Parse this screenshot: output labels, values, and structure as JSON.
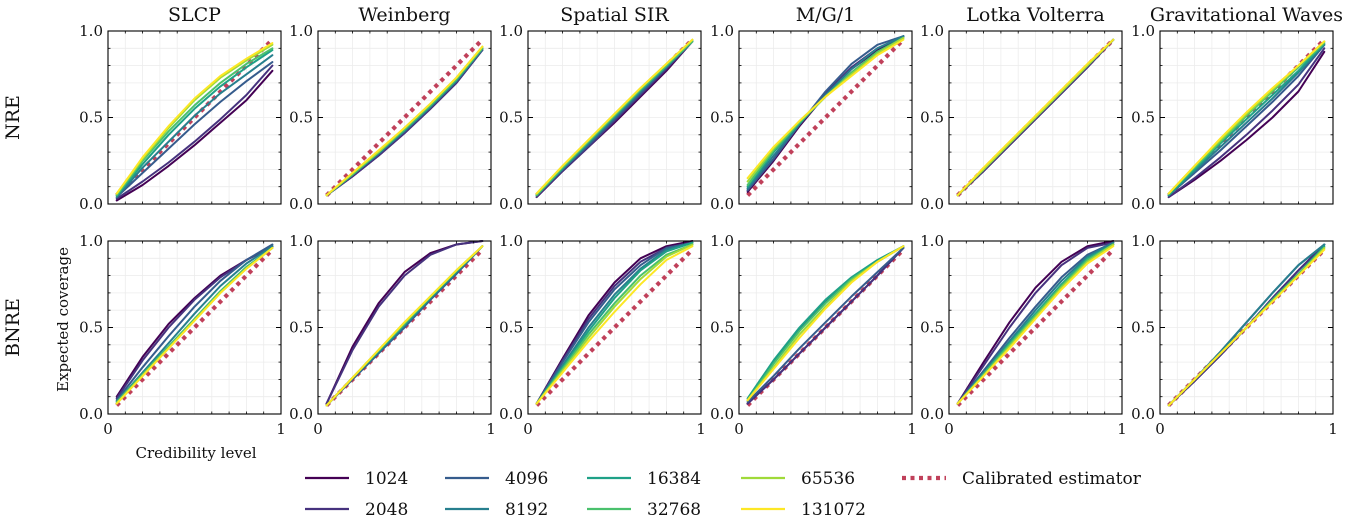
{
  "chart_data": {
    "type": "line",
    "columns": [
      "SLCP",
      "Weinberg",
      "Spatial SIR",
      "M/G/1",
      "Lotka Volterra",
      "Gravitational Waves"
    ],
    "rows": [
      "NRE",
      "BNRE"
    ],
    "xlabel": "Credibility level",
    "ylabel": "Expected coverage",
    "xlim": [
      0,
      1
    ],
    "ylim": [
      0,
      1
    ],
    "xticks": [
      "0",
      "1"
    ],
    "yticks": [
      "0.0",
      "0.5",
      "1.0"
    ],
    "grid": true,
    "budgets": [
      "1024",
      "2048",
      "4096",
      "8192",
      "16384",
      "32768",
      "65536",
      "131072"
    ],
    "series_colors": [
      "#440154",
      "#46327e",
      "#365c8d",
      "#277f8e",
      "#1fa187",
      "#4ac16d",
      "#a0da39",
      "#fde725"
    ],
    "calibrated": {
      "name": "Calibrated estimator",
      "color": "#c0405a",
      "x": [
        0.05,
        0.95
      ],
      "y": [
        0.05,
        0.95
      ]
    },
    "x": [
      0.05,
      0.2,
      0.35,
      0.5,
      0.65,
      0.8,
      0.95
    ],
    "panels": [
      {
        "row": "NRE",
        "col": "SLCP",
        "series": [
          [
            0.02,
            0.11,
            0.22,
            0.34,
            0.47,
            0.6,
            0.77
          ],
          [
            0.03,
            0.13,
            0.24,
            0.36,
            0.49,
            0.63,
            0.8
          ],
          [
            0.04,
            0.18,
            0.32,
            0.46,
            0.59,
            0.71,
            0.82
          ],
          [
            0.04,
            0.21,
            0.36,
            0.51,
            0.64,
            0.75,
            0.86
          ],
          [
            0.05,
            0.23,
            0.4,
            0.55,
            0.68,
            0.79,
            0.89
          ],
          [
            0.05,
            0.25,
            0.42,
            0.57,
            0.7,
            0.81,
            0.9
          ],
          [
            0.06,
            0.26,
            0.44,
            0.6,
            0.73,
            0.83,
            0.92
          ],
          [
            0.06,
            0.27,
            0.45,
            0.61,
            0.74,
            0.84,
            0.93
          ]
        ]
      },
      {
        "row": "NRE",
        "col": "Weinberg",
        "series": [
          [
            0.05,
            0.16,
            0.28,
            0.41,
            0.55,
            0.7,
            0.89
          ],
          [
            0.05,
            0.16,
            0.28,
            0.41,
            0.55,
            0.7,
            0.89
          ],
          [
            0.05,
            0.17,
            0.29,
            0.42,
            0.56,
            0.71,
            0.89
          ],
          [
            0.05,
            0.17,
            0.29,
            0.42,
            0.56,
            0.71,
            0.9
          ],
          [
            0.05,
            0.17,
            0.3,
            0.43,
            0.57,
            0.72,
            0.9
          ],
          [
            0.05,
            0.17,
            0.3,
            0.43,
            0.57,
            0.72,
            0.9
          ],
          [
            0.05,
            0.18,
            0.3,
            0.44,
            0.58,
            0.73,
            0.91
          ],
          [
            0.05,
            0.18,
            0.31,
            0.44,
            0.58,
            0.73,
            0.91
          ]
        ]
      },
      {
        "row": "NRE",
        "col": "Spatial SIR",
        "series": [
          [
            0.04,
            0.19,
            0.33,
            0.47,
            0.62,
            0.77,
            0.94
          ],
          [
            0.04,
            0.19,
            0.33,
            0.48,
            0.63,
            0.78,
            0.94
          ],
          [
            0.05,
            0.2,
            0.34,
            0.49,
            0.64,
            0.79,
            0.94
          ],
          [
            0.05,
            0.2,
            0.35,
            0.5,
            0.65,
            0.79,
            0.94
          ],
          [
            0.05,
            0.21,
            0.36,
            0.51,
            0.66,
            0.8,
            0.94
          ],
          [
            0.05,
            0.21,
            0.36,
            0.51,
            0.66,
            0.8,
            0.94
          ],
          [
            0.06,
            0.22,
            0.37,
            0.52,
            0.67,
            0.81,
            0.95
          ],
          [
            0.06,
            0.22,
            0.37,
            0.52,
            0.67,
            0.81,
            0.95
          ]
        ]
      },
      {
        "row": "NRE",
        "col": "M/G/1",
        "series": [
          [
            0.07,
            0.25,
            0.45,
            0.63,
            0.78,
            0.89,
            0.97
          ],
          [
            0.08,
            0.26,
            0.46,
            0.64,
            0.79,
            0.9,
            0.97
          ],
          [
            0.08,
            0.26,
            0.46,
            0.65,
            0.81,
            0.92,
            0.97
          ],
          [
            0.09,
            0.28,
            0.46,
            0.63,
            0.78,
            0.9,
            0.97
          ],
          [
            0.1,
            0.3,
            0.47,
            0.62,
            0.76,
            0.88,
            0.96
          ],
          [
            0.11,
            0.31,
            0.47,
            0.62,
            0.76,
            0.88,
            0.96
          ],
          [
            0.13,
            0.32,
            0.48,
            0.62,
            0.75,
            0.87,
            0.96
          ],
          [
            0.15,
            0.33,
            0.48,
            0.62,
            0.74,
            0.86,
            0.95
          ]
        ]
      },
      {
        "row": "NRE",
        "col": "Lotka Volterra",
        "series": [
          [
            0.05,
            0.19,
            0.34,
            0.49,
            0.64,
            0.79,
            0.95
          ],
          [
            0.05,
            0.19,
            0.34,
            0.49,
            0.64,
            0.79,
            0.95
          ],
          [
            0.05,
            0.2,
            0.35,
            0.5,
            0.65,
            0.8,
            0.95
          ],
          [
            0.05,
            0.2,
            0.35,
            0.5,
            0.65,
            0.8,
            0.95
          ],
          [
            0.05,
            0.2,
            0.35,
            0.5,
            0.65,
            0.8,
            0.95
          ],
          [
            0.05,
            0.2,
            0.35,
            0.5,
            0.65,
            0.8,
            0.95
          ],
          [
            0.05,
            0.2,
            0.35,
            0.5,
            0.65,
            0.8,
            0.95
          ],
          [
            0.05,
            0.21,
            0.36,
            0.51,
            0.66,
            0.81,
            0.95
          ]
        ]
      },
      {
        "row": "NRE",
        "col": "Gravitational Waves",
        "series": [
          [
            0.04,
            0.14,
            0.25,
            0.37,
            0.5,
            0.65,
            0.88
          ],
          [
            0.04,
            0.15,
            0.27,
            0.4,
            0.54,
            0.69,
            0.9
          ],
          [
            0.05,
            0.18,
            0.31,
            0.45,
            0.59,
            0.74,
            0.92
          ],
          [
            0.05,
            0.19,
            0.33,
            0.47,
            0.61,
            0.76,
            0.92
          ],
          [
            0.05,
            0.2,
            0.35,
            0.49,
            0.63,
            0.77,
            0.93
          ],
          [
            0.06,
            0.21,
            0.36,
            0.51,
            0.65,
            0.79,
            0.93
          ],
          [
            0.06,
            0.22,
            0.37,
            0.52,
            0.66,
            0.8,
            0.94
          ],
          [
            0.06,
            0.22,
            0.38,
            0.53,
            0.67,
            0.8,
            0.94
          ]
        ]
      },
      {
        "row": "BNRE",
        "col": "SLCP",
        "series": [
          [
            0.1,
            0.33,
            0.52,
            0.67,
            0.8,
            0.89,
            0.97
          ],
          [
            0.09,
            0.31,
            0.5,
            0.66,
            0.79,
            0.89,
            0.97
          ],
          [
            0.08,
            0.27,
            0.45,
            0.62,
            0.77,
            0.89,
            0.98
          ],
          [
            0.07,
            0.24,
            0.41,
            0.58,
            0.74,
            0.87,
            0.97
          ],
          [
            0.07,
            0.23,
            0.39,
            0.55,
            0.71,
            0.85,
            0.96
          ],
          [
            0.07,
            0.23,
            0.39,
            0.55,
            0.71,
            0.85,
            0.96
          ],
          [
            0.06,
            0.22,
            0.38,
            0.54,
            0.7,
            0.84,
            0.96
          ],
          [
            0.06,
            0.22,
            0.38,
            0.54,
            0.7,
            0.84,
            0.96
          ]
        ]
      },
      {
        "row": "BNRE",
        "col": "Weinberg",
        "series": [
          [
            0.06,
            0.39,
            0.64,
            0.82,
            0.93,
            0.98,
            1.0
          ],
          [
            0.06,
            0.37,
            0.62,
            0.8,
            0.92,
            0.98,
            1.0
          ],
          [
            0.05,
            0.2,
            0.35,
            0.5,
            0.66,
            0.81,
            0.97
          ],
          [
            0.05,
            0.21,
            0.36,
            0.51,
            0.67,
            0.82,
            0.97
          ],
          [
            0.05,
            0.21,
            0.36,
            0.52,
            0.67,
            0.82,
            0.97
          ],
          [
            0.05,
            0.21,
            0.37,
            0.52,
            0.68,
            0.83,
            0.97
          ],
          [
            0.05,
            0.21,
            0.37,
            0.53,
            0.68,
            0.83,
            0.97
          ],
          [
            0.05,
            0.21,
            0.37,
            0.53,
            0.68,
            0.83,
            0.97
          ]
        ]
      },
      {
        "row": "BNRE",
        "col": "Spatial SIR",
        "series": [
          [
            0.06,
            0.32,
            0.57,
            0.76,
            0.9,
            0.97,
            1.0
          ],
          [
            0.06,
            0.31,
            0.55,
            0.74,
            0.88,
            0.96,
            0.99
          ],
          [
            0.06,
            0.3,
            0.53,
            0.72,
            0.86,
            0.96,
            0.99
          ],
          [
            0.06,
            0.28,
            0.5,
            0.69,
            0.84,
            0.95,
            0.99
          ],
          [
            0.06,
            0.27,
            0.48,
            0.67,
            0.83,
            0.94,
            0.99
          ],
          [
            0.06,
            0.26,
            0.46,
            0.64,
            0.8,
            0.92,
            0.98
          ],
          [
            0.06,
            0.25,
            0.44,
            0.62,
            0.78,
            0.91,
            0.98
          ],
          [
            0.06,
            0.24,
            0.42,
            0.59,
            0.75,
            0.89,
            0.97
          ]
        ]
      },
      {
        "row": "BNRE",
        "col": "M/G/1",
        "series": [
          [
            0.06,
            0.2,
            0.35,
            0.5,
            0.65,
            0.8,
            0.96
          ],
          [
            0.06,
            0.2,
            0.35,
            0.5,
            0.65,
            0.8,
            0.96
          ],
          [
            0.07,
            0.22,
            0.38,
            0.53,
            0.68,
            0.82,
            0.96
          ],
          [
            0.08,
            0.3,
            0.49,
            0.65,
            0.78,
            0.88,
            0.97
          ],
          [
            0.09,
            0.31,
            0.5,
            0.66,
            0.79,
            0.89,
            0.97
          ],
          [
            0.08,
            0.29,
            0.48,
            0.64,
            0.78,
            0.88,
            0.97
          ],
          [
            0.08,
            0.27,
            0.46,
            0.62,
            0.77,
            0.88,
            0.97
          ],
          [
            0.08,
            0.26,
            0.44,
            0.61,
            0.76,
            0.88,
            0.97
          ]
        ]
      },
      {
        "row": "BNRE",
        "col": "Lotka Volterra",
        "series": [
          [
            0.06,
            0.3,
            0.53,
            0.73,
            0.88,
            0.97,
            1.0
          ],
          [
            0.06,
            0.28,
            0.5,
            0.7,
            0.86,
            0.96,
            0.99
          ],
          [
            0.06,
            0.25,
            0.44,
            0.62,
            0.79,
            0.92,
            0.99
          ],
          [
            0.06,
            0.24,
            0.42,
            0.6,
            0.77,
            0.91,
            0.99
          ],
          [
            0.06,
            0.23,
            0.41,
            0.58,
            0.75,
            0.9,
            0.98
          ],
          [
            0.06,
            0.23,
            0.4,
            0.57,
            0.74,
            0.89,
            0.98
          ],
          [
            0.06,
            0.22,
            0.39,
            0.56,
            0.73,
            0.88,
            0.98
          ],
          [
            0.06,
            0.22,
            0.38,
            0.55,
            0.72,
            0.87,
            0.97
          ]
        ]
      },
      {
        "row": "BNRE",
        "col": "Gravitational Waves",
        "series": [
          [
            0.05,
            0.19,
            0.34,
            0.5,
            0.67,
            0.83,
            0.98
          ],
          [
            0.05,
            0.19,
            0.34,
            0.5,
            0.67,
            0.83,
            0.98
          ],
          [
            0.05,
            0.2,
            0.36,
            0.53,
            0.7,
            0.86,
            0.98
          ],
          [
            0.05,
            0.2,
            0.36,
            0.53,
            0.7,
            0.86,
            0.98
          ],
          [
            0.05,
            0.2,
            0.35,
            0.5,
            0.66,
            0.81,
            0.97
          ],
          [
            0.05,
            0.2,
            0.35,
            0.5,
            0.66,
            0.81,
            0.96
          ],
          [
            0.05,
            0.2,
            0.35,
            0.5,
            0.65,
            0.8,
            0.96
          ],
          [
            0.05,
            0.2,
            0.35,
            0.5,
            0.65,
            0.8,
            0.95
          ]
        ]
      }
    ]
  }
}
